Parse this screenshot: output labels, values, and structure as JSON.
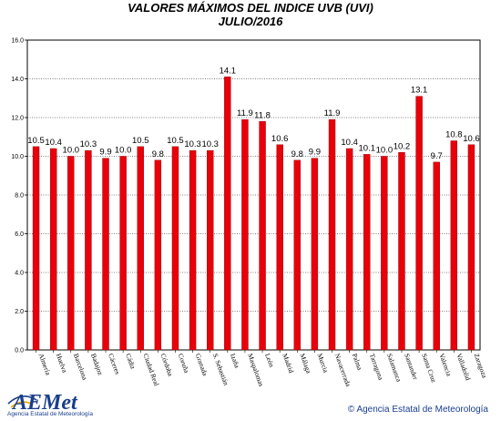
{
  "chart_data": {
    "type": "bar",
    "title": "VALORES MÁXIMOS DEL INDICE UVB (UVI)",
    "subtitle": "JULIO/2016",
    "xlabel": "",
    "ylabel": "",
    "ylim": [
      0,
      16
    ],
    "yticks": [
      "0.0",
      "2.0",
      "4.0",
      "6.0",
      "8.0",
      "10.0",
      "12.0",
      "14.0",
      "16.0"
    ],
    "grid": true,
    "bar_color": "#e8000b",
    "categories": [
      "Almería",
      "Huelva",
      "Barcelona",
      "Badajoz",
      "Cáceres",
      "Cádiz",
      "Ciudad Real",
      "Córdoba",
      "Coruña",
      "Granada",
      "S. Sebastián",
      "Izaña",
      "Maspalomas",
      "León",
      "Madrid",
      "Málaga",
      "Murcia",
      "Navacerrada",
      "Palma",
      "Tarragona",
      "Salamanca",
      "Santander",
      "Santa Cruz",
      "Valencia",
      "Valladolid",
      "Zaragoza"
    ],
    "values": [
      10.5,
      10.4,
      10.0,
      10.3,
      9.9,
      10.0,
      10.5,
      9.8,
      10.5,
      10.3,
      10.3,
      14.1,
      11.9,
      11.8,
      10.6,
      9.8,
      9.9,
      11.9,
      10.4,
      10.1,
      10.0,
      10.2,
      13.1,
      9.7,
      10.8,
      10.6
    ],
    "value_labels": [
      "10.5",
      "10.4",
      "10.0",
      "10.3",
      "9.9",
      "10.0",
      "10.5",
      "9.8",
      "10.5",
      "10.3",
      "10.3",
      "14.1",
      "11.9",
      "11.8",
      "10.6",
      "9.8",
      "9.9",
      "11.9",
      "10.4",
      "10.1",
      "10.0",
      "10.2",
      "13.1",
      "9.7",
      "10.8",
      "10.6"
    ]
  },
  "footer": {
    "logo_text": "AEMet",
    "logo_subtext": "Agencia Estatal de Meteorología",
    "copyright": "© Agencia Estatal de Meteorología"
  }
}
